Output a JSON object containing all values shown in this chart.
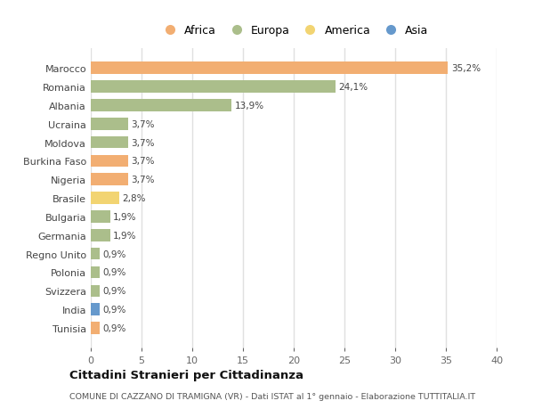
{
  "countries": [
    "Marocco",
    "Romania",
    "Albania",
    "Ucraina",
    "Moldova",
    "Burkina Faso",
    "Nigeria",
    "Brasile",
    "Bulgaria",
    "Germania",
    "Regno Unito",
    "Polonia",
    "Svizzera",
    "India",
    "Tunisia"
  ],
  "values": [
    35.2,
    24.1,
    13.9,
    3.7,
    3.7,
    3.7,
    3.7,
    2.8,
    1.9,
    1.9,
    0.9,
    0.9,
    0.9,
    0.9,
    0.9
  ],
  "labels": [
    "35,2%",
    "24,1%",
    "13,9%",
    "3,7%",
    "3,7%",
    "3,7%",
    "3,7%",
    "2,8%",
    "1,9%",
    "1,9%",
    "0,9%",
    "0,9%",
    "0,9%",
    "0,9%",
    "0,9%"
  ],
  "continents": [
    "Africa",
    "Europa",
    "Europa",
    "Europa",
    "Europa",
    "Africa",
    "Africa",
    "America",
    "Europa",
    "Europa",
    "Europa",
    "Europa",
    "Europa",
    "Asia",
    "Africa"
  ],
  "colors": {
    "Africa": "#F2AE72",
    "Europa": "#ABBE8B",
    "America": "#F2D472",
    "Asia": "#6699CC"
  },
  "title": "Cittadini Stranieri per Cittadinanza",
  "subtitle": "COMUNE DI CAZZANO DI TRAMIGNA (VR) - Dati ISTAT al 1° gennaio - Elaborazione TUTTITALIA.IT",
  "xlim": [
    0,
    40
  ],
  "xticks": [
    0,
    5,
    10,
    15,
    20,
    25,
    30,
    35,
    40
  ],
  "background_color": "#ffffff",
  "plot_background": "#ffffff",
  "grid_color": "#e0e0e0"
}
